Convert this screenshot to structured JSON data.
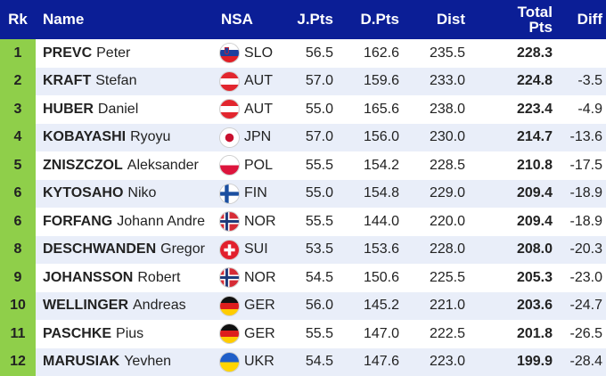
{
  "colors": {
    "header_bg": "#0b1e96",
    "rank_bg": "#8fcf4a",
    "row_even": "#e9eef9",
    "row_odd": "#ffffff"
  },
  "header": {
    "rk": "Rk",
    "name": "Name",
    "nsa": "NSA",
    "jpts": "J.Pts",
    "dpts": "D.Pts",
    "dist": "Dist",
    "total_line1": "Total",
    "total_line2": "Pts",
    "diff": "Diff"
  },
  "rows": [
    {
      "rk": "1",
      "last": "PREVC",
      "first": "Peter",
      "flag": "slovenia-flag",
      "nsa": "SLO",
      "jpts": "56.5",
      "dpts": "162.6",
      "dist": "235.5",
      "total": "228.3",
      "diff": ""
    },
    {
      "rk": "2",
      "last": "KRAFT",
      "first": "Stefan",
      "flag": "austria-flag",
      "nsa": "AUT",
      "jpts": "57.0",
      "dpts": "159.6",
      "dist": "233.0",
      "total": "224.8",
      "diff": "-3.5"
    },
    {
      "rk": "3",
      "last": "HUBER",
      "first": "Daniel",
      "flag": "austria-flag",
      "nsa": "AUT",
      "jpts": "55.0",
      "dpts": "165.6",
      "dist": "238.0",
      "total": "223.4",
      "diff": "-4.9"
    },
    {
      "rk": "4",
      "last": "KOBAYASHI",
      "first": "Ryoyu",
      "flag": "japan-flag",
      "nsa": "JPN",
      "jpts": "57.0",
      "dpts": "156.0",
      "dist": "230.0",
      "total": "214.7",
      "diff": "-13.6"
    },
    {
      "rk": "5",
      "last": "ZNISZCZOL",
      "first": "Aleksander",
      "flag": "poland-flag",
      "nsa": "POL",
      "jpts": "55.5",
      "dpts": "154.2",
      "dist": "228.5",
      "total": "210.8",
      "diff": "-17.5"
    },
    {
      "rk": "6",
      "last": "KYTOSAHO",
      "first": "Niko",
      "flag": "finland-flag",
      "nsa": "FIN",
      "jpts": "55.0",
      "dpts": "154.8",
      "dist": "229.0",
      "total": "209.4",
      "diff": "-18.9"
    },
    {
      "rk": "6",
      "last": "FORFANG",
      "first": "Johann Andre",
      "flag": "norway-flag",
      "nsa": "NOR",
      "jpts": "55.5",
      "dpts": "144.0",
      "dist": "220.0",
      "total": "209.4",
      "diff": "-18.9"
    },
    {
      "rk": "8",
      "last": "DESCHWANDEN",
      "first": "Gregor",
      "flag": "switzerland-flag",
      "nsa": "SUI",
      "jpts": "53.5",
      "dpts": "153.6",
      "dist": "228.0",
      "total": "208.0",
      "diff": "-20.3"
    },
    {
      "rk": "9",
      "last": "JOHANSSON",
      "first": "Robert",
      "flag": "norway-flag",
      "nsa": "NOR",
      "jpts": "54.5",
      "dpts": "150.6",
      "dist": "225.5",
      "total": "205.3",
      "diff": "-23.0"
    },
    {
      "rk": "10",
      "last": "WELLINGER",
      "first": "Andreas",
      "flag": "germany-flag",
      "nsa": "GER",
      "jpts": "56.0",
      "dpts": "145.2",
      "dist": "221.0",
      "total": "203.6",
      "diff": "-24.7"
    },
    {
      "rk": "11",
      "last": "PASCHKE",
      "first": "Pius",
      "flag": "germany-flag",
      "nsa": "GER",
      "jpts": "55.5",
      "dpts": "147.0",
      "dist": "222.5",
      "total": "201.8",
      "diff": "-26.5"
    },
    {
      "rk": "12",
      "last": "MARUSIAK",
      "first": "Yevhen",
      "flag": "ukraine-flag",
      "nsa": "UKR",
      "jpts": "54.5",
      "dpts": "147.6",
      "dist": "223.0",
      "total": "199.9",
      "diff": "-28.4"
    }
  ]
}
